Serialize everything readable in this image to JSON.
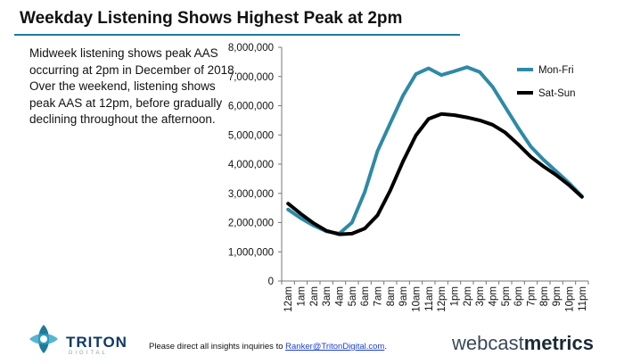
{
  "slide": {
    "title": "Weekday Listening Shows Highest Peak at 2pm",
    "description": "Midweek listening shows peak AAS occurring at 2pm in December of 2018. Over the weekend, listening shows peak AAS at 12pm, before gradually declining throughout the afternoon.",
    "footer_prefix": "Please direct all insights inquiries to ",
    "footer_email": "Ranker@TritonDigital.com",
    "footer_suffix": ".",
    "logo_left": "TRITON",
    "logo_left_sub": "DIGITAL",
    "logo_right_a": "webcast",
    "logo_right_b": "metrics"
  },
  "colors": {
    "title_rule": "#1f7a99",
    "mon_fri": "#2e8aa6",
    "sat_sun": "#000000"
  },
  "chart_data": {
    "type": "line",
    "categories": [
      "12am",
      "1am",
      "2am",
      "3am",
      "4am",
      "5am",
      "6am",
      "7am",
      "8am",
      "9am",
      "10am",
      "11am",
      "12pm",
      "1pm",
      "2pm",
      "3pm",
      "4pm",
      "5pm",
      "6pm",
      "7pm",
      "8pm",
      "9pm",
      "10pm",
      "11pm"
    ],
    "y_ticks": [
      "0",
      "1,000,000",
      "2,000,000",
      "3,000,000",
      "4,000,000",
      "5,000,000",
      "6,000,000",
      "7,000,000",
      "8,000,000"
    ],
    "ylim": [
      0,
      8000000
    ],
    "legend_position": "right",
    "series": [
      {
        "name": "Mon-Fri",
        "color": "#2e8aa6",
        "values": [
          2450000,
          2150000,
          1900000,
          1700000,
          1620000,
          2000000,
          3050000,
          4450000,
          5400000,
          6350000,
          7080000,
          7280000,
          7050000,
          7180000,
          7320000,
          7150000,
          6650000,
          5950000,
          5250000,
          4600000,
          4150000,
          3750000,
          3350000,
          2900000
        ]
      },
      {
        "name": "Sat-Sun",
        "color": "#000000",
        "values": [
          2650000,
          2300000,
          1980000,
          1720000,
          1600000,
          1620000,
          1800000,
          2250000,
          3100000,
          4100000,
          4980000,
          5550000,
          5720000,
          5680000,
          5600000,
          5500000,
          5350000,
          5080000,
          4680000,
          4250000,
          3920000,
          3620000,
          3280000,
          2880000
        ]
      }
    ]
  }
}
